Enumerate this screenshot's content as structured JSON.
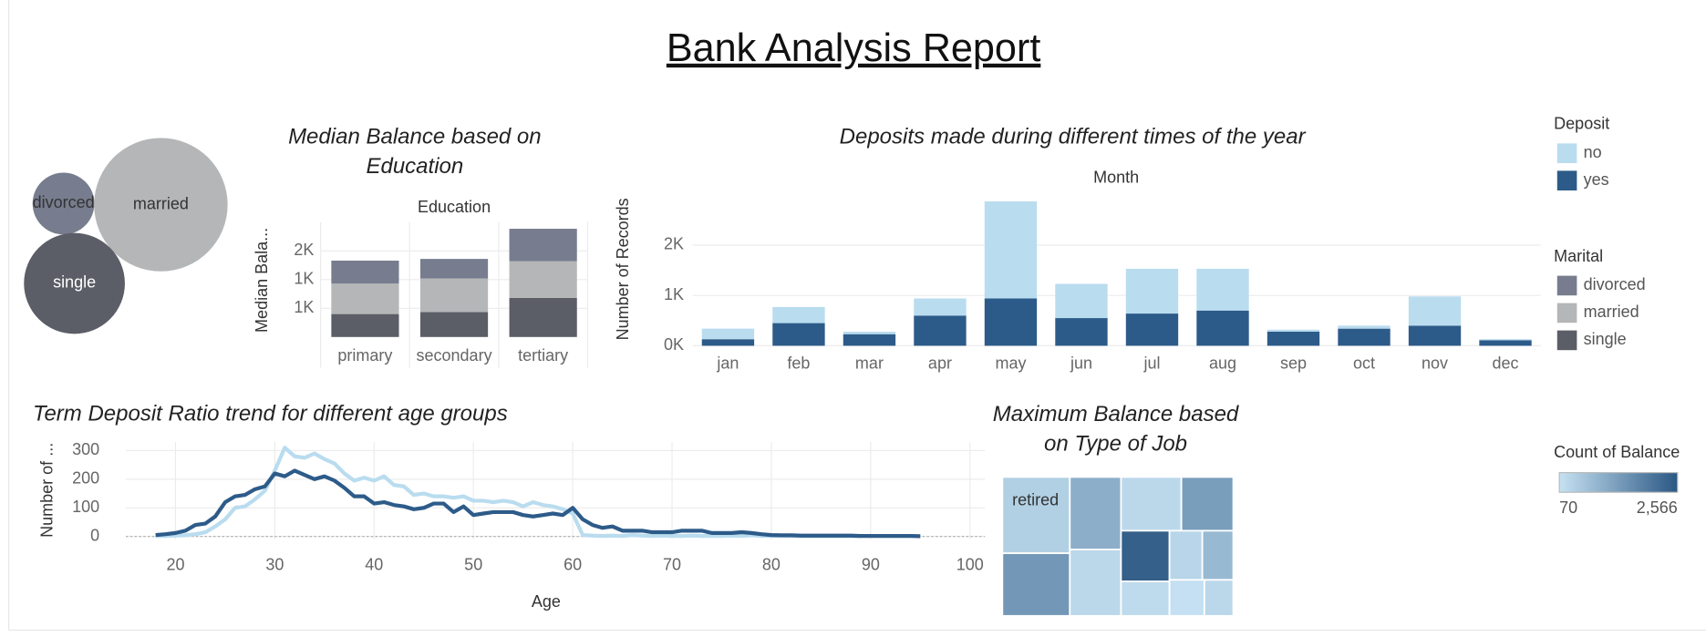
{
  "title": "Bank Analysis Report",
  "chart_data": [
    {
      "type": "bubble",
      "categories": [
        "divorced",
        "married",
        "single"
      ],
      "values": [
        600,
        2800,
        1600
      ],
      "colors": [
        "#777d8e",
        "#b4b6b8",
        "#5b5e66"
      ]
    },
    {
      "type": "bar",
      "stacked": true,
      "title": "Median Balance based on Education",
      "header": "Education",
      "ylabel": "Median Bala...",
      "categories": [
        "primary",
        "secondary",
        "tertiary"
      ],
      "series": [
        {
          "name": "divorced",
          "color": "#777d8e",
          "values": [
            400,
            340,
            565
          ]
        },
        {
          "name": "married",
          "color": "#b4b6b8",
          "values": [
            530,
            585,
            640
          ]
        },
        {
          "name": "single",
          "color": "#5b5e66",
          "values": [
            400,
            435,
            680
          ]
        }
      ],
      "legend_title": "Marital",
      "ylim": [
        0,
        2000
      ],
      "yticks": [
        {
          "value": 500,
          "label": "1K"
        },
        {
          "value": 1000,
          "label": "1K"
        },
        {
          "value": 1500,
          "label": "2K"
        }
      ],
      "grid": true
    },
    {
      "type": "bar",
      "stacked": true,
      "title": "Deposits made during different times of the year",
      "header": "Month",
      "ylabel": "Number of Records",
      "categories": [
        "jan",
        "feb",
        "mar",
        "apr",
        "may",
        "jun",
        "jul",
        "aug",
        "sep",
        "oct",
        "nov",
        "dec"
      ],
      "series": [
        {
          "name": "no",
          "color": "#b9dcef",
          "values": [
            210,
            320,
            50,
            340,
            1930,
            680,
            890,
            830,
            40,
            60,
            580,
            20
          ]
        },
        {
          "name": "yes",
          "color": "#2d5b89",
          "values": [
            130,
            450,
            230,
            600,
            940,
            550,
            640,
            700,
            280,
            340,
            400,
            110
          ]
        }
      ],
      "legend_title": "Deposit",
      "ylim": [
        0,
        3000
      ],
      "yticks": [
        {
          "value": 0,
          "label": "0K"
        },
        {
          "value": 1000,
          "label": "1K"
        },
        {
          "value": 2000,
          "label": "2K"
        }
      ],
      "grid": true
    },
    {
      "type": "line",
      "title": "Term Deposit Ratio trend for different age groups",
      "xlabel": "Age",
      "ylabel": "Number of ...",
      "x": [
        18,
        19,
        20,
        21,
        22,
        23,
        24,
        25,
        26,
        27,
        28,
        29,
        30,
        31,
        32,
        33,
        34,
        35,
        36,
        37,
        38,
        39,
        40,
        41,
        42,
        43,
        44,
        45,
        46,
        47,
        48,
        49,
        50,
        51,
        52,
        53,
        54,
        55,
        56,
        57,
        58,
        59,
        60,
        61,
        62,
        63,
        64,
        65,
        66,
        67,
        68,
        69,
        70,
        71,
        72,
        73,
        74,
        75,
        76,
        77,
        78,
        79,
        80,
        81,
        82,
        83,
        84,
        85,
        86,
        87,
        88,
        89,
        90,
        91,
        92,
        93,
        94,
        95
      ],
      "series": [
        {
          "color": "#b9dcef",
          "values": [
            2,
            2,
            3,
            4,
            8,
            15,
            35,
            60,
            100,
            105,
            130,
            160,
            230,
            310,
            280,
            275,
            290,
            270,
            255,
            220,
            195,
            205,
            195,
            210,
            180,
            175,
            145,
            150,
            140,
            140,
            135,
            140,
            125,
            125,
            120,
            125,
            120,
            105,
            120,
            110,
            105,
            95,
            80,
            5,
            3,
            2,
            3,
            2,
            5,
            3,
            2,
            3,
            2,
            2,
            3,
            2,
            2,
            2,
            3,
            2,
            4,
            2,
            2,
            2,
            2,
            1,
            1,
            1,
            1,
            1,
            1,
            1,
            null,
            null,
            null,
            null,
            null,
            null
          ]
        },
        {
          "color": "#2d5b89",
          "values": [
            5,
            8,
            12,
            20,
            40,
            45,
            70,
            120,
            140,
            145,
            165,
            175,
            220,
            210,
            230,
            215,
            200,
            210,
            195,
            170,
            140,
            140,
            115,
            120,
            110,
            105,
            95,
            100,
            115,
            115,
            85,
            105,
            75,
            80,
            85,
            85,
            85,
            75,
            70,
            75,
            80,
            75,
            100,
            60,
            40,
            30,
            35,
            20,
            20,
            20,
            15,
            15,
            15,
            20,
            20,
            20,
            12,
            12,
            12,
            15,
            12,
            8,
            5,
            4,
            4,
            3,
            3,
            3,
            3,
            3,
            3,
            2,
            2,
            2,
            2,
            2,
            2,
            1
          ]
        }
      ],
      "xlim": [
        15,
        101.5
      ],
      "xticks": [
        20,
        30,
        40,
        50,
        60,
        70,
        80,
        90,
        100
      ],
      "ylim": [
        -10,
        330
      ],
      "yticks": [
        0,
        100,
        200,
        300
      ],
      "grid": true
    },
    {
      "type": "treemap",
      "title": "Maximum Balance based on Type of Job",
      "categories": [
        "retired",
        null,
        null,
        null,
        null,
        null,
        null,
        null,
        null,
        null,
        null,
        null
      ],
      "values": [
        43000,
        35300,
        31000,
        28400,
        27100,
        23300,
        20500,
        14000,
        13500,
        12700,
        10500,
        8700
      ],
      "color_values": [
        400,
        1400,
        1000,
        250,
        250,
        1300,
        2400,
        200,
        300,
        800,
        100,
        250
      ],
      "color_legend_title": "Count of Balance",
      "color_range": [
        {
          "value": 70,
          "label": "70"
        },
        {
          "value": 2566,
          "label": "2,566"
        }
      ],
      "color_scale": [
        "#c6e2f3",
        "#2a5783"
      ]
    }
  ]
}
